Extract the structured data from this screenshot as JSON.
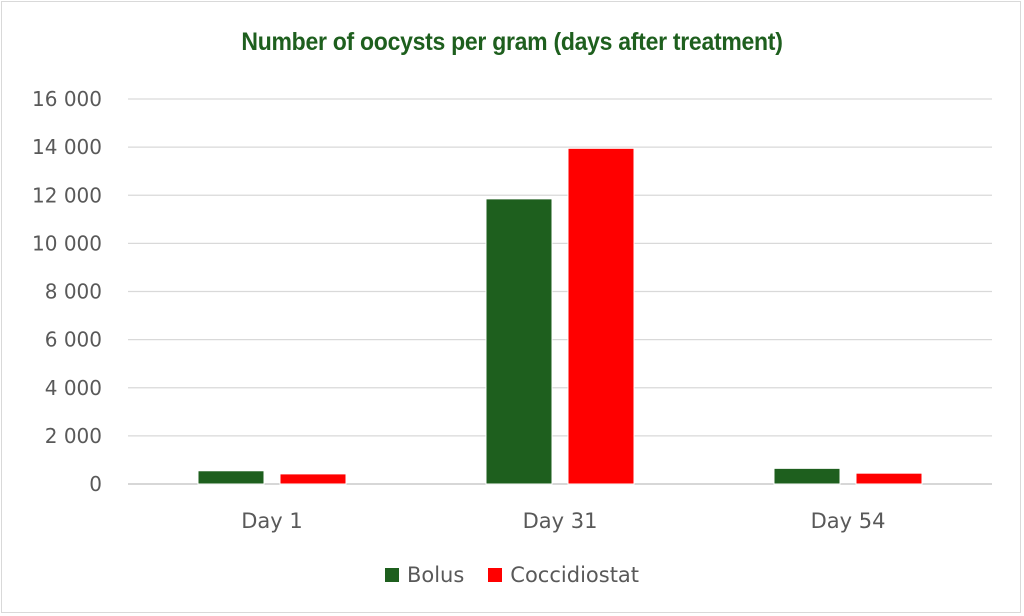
{
  "chart_data": {
    "type": "bar",
    "title": "Number of oocysts per gram (days after treatment)",
    "xlabel": "",
    "ylabel": "",
    "categories": [
      "Day 1",
      "Day 31",
      "Day 54"
    ],
    "series": [
      {
        "name": "Bolus",
        "color": "#1e5f1e",
        "values": [
          550,
          11850,
          650
        ]
      },
      {
        "name": "Coccidiostat",
        "color": "#ff0000",
        "values": [
          420,
          13950,
          450
        ]
      }
    ],
    "ylim": [
      0,
      16000
    ],
    "yticks": [
      "0",
      "2 000",
      "4 000",
      "6 000",
      "8 000",
      "10 000",
      "12 000",
      "14 000",
      "16 000"
    ],
    "grid": true,
    "legend_position": "bottom"
  }
}
